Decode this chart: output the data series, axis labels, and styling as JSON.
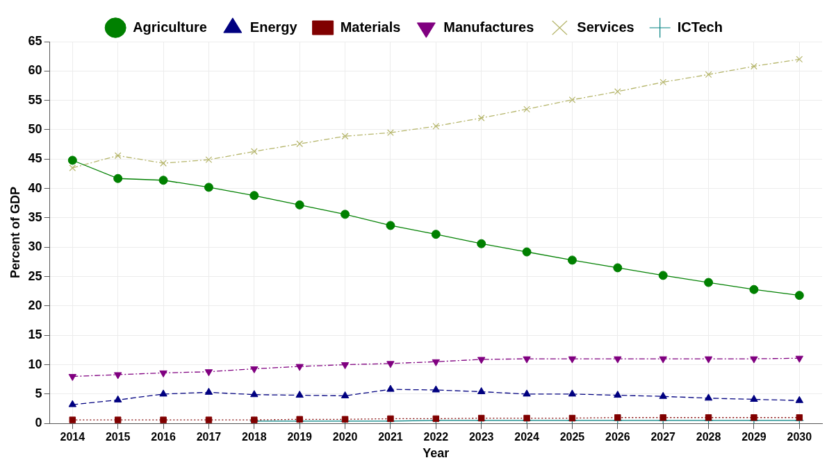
{
  "chart_data": {
    "type": "line",
    "xlabel": "Year",
    "ylabel": "Percent of GDP",
    "categories": [
      "2014",
      "2015",
      "2016",
      "2017",
      "2018",
      "2019",
      "2020",
      "2021",
      "2022",
      "2023",
      "2024",
      "2025",
      "2026",
      "2027",
      "2028",
      "2029",
      "2030"
    ],
    "ylim": [
      0,
      65
    ],
    "yticks": [
      0,
      5,
      10,
      15,
      20,
      25,
      30,
      35,
      40,
      45,
      50,
      55,
      60,
      65
    ],
    "grid": true,
    "legend": "top",
    "series": [
      {
        "name": "Agriculture",
        "color": "#008000",
        "marker": "circle",
        "line_style": "solid",
        "values": [
          44.8,
          41.7,
          41.4,
          40.2,
          38.8,
          37.2,
          35.6,
          33.7,
          32.2,
          30.6,
          29.2,
          27.8,
          26.5,
          25.2,
          24.0,
          22.8,
          21.8
        ]
      },
      {
        "name": "Energy",
        "color": "#000080",
        "marker": "triangle",
        "line_style": "dashed",
        "values": [
          3.2,
          4.0,
          5.0,
          5.3,
          4.9,
          4.8,
          4.7,
          5.8,
          5.7,
          5.4,
          5.0,
          5.0,
          4.8,
          4.6,
          4.3,
          4.1,
          3.9
        ]
      },
      {
        "name": "Materials",
        "color": "#800000",
        "marker": "square",
        "line_style": "dotted",
        "values": [
          0.6,
          0.6,
          0.6,
          0.6,
          0.6,
          0.7,
          0.7,
          0.8,
          0.8,
          0.9,
          0.9,
          0.9,
          1.0,
          1.0,
          1.0,
          1.0,
          1.0
        ]
      },
      {
        "name": "Manufactures",
        "color": "#800080",
        "marker": "triangle-down",
        "line_style": "dashdot",
        "values": [
          8.0,
          8.3,
          8.6,
          8.8,
          9.3,
          9.7,
          10.0,
          10.2,
          10.5,
          10.9,
          11.0,
          11.0,
          11.0,
          11.0,
          11.0,
          11.0,
          11.1
        ]
      },
      {
        "name": "Services",
        "color": "#b5b56a",
        "marker": "x",
        "line_style": "dashdot",
        "values": [
          43.5,
          45.6,
          44.3,
          44.9,
          46.3,
          47.6,
          48.9,
          49.5,
          50.6,
          52.0,
          53.5,
          55.1,
          56.5,
          58.1,
          59.4,
          60.8,
          62.0
        ]
      },
      {
        "name": "ICTech",
        "color": "#008080",
        "marker": "plus",
        "line_style": "solid",
        "values": [
          null,
          null,
          null,
          null,
          0.4,
          0.4,
          0.4,
          0.4,
          0.5,
          0.5,
          0.5,
          0.5,
          0.5,
          0.5,
          0.5,
          0.5,
          0.5
        ]
      }
    ]
  }
}
